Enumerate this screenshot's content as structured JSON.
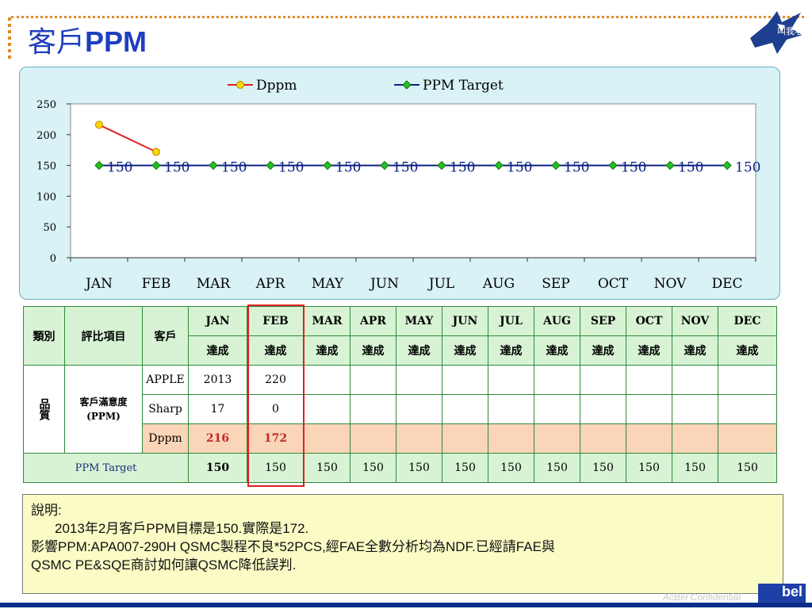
{
  "title": {
    "prefix": "客戶",
    "ppm": "PPM"
  },
  "logo": {
    "text": "叫我老鷹"
  },
  "chart_data": {
    "type": "line",
    "categories": [
      "JAN",
      "FEB",
      "MAR",
      "APR",
      "MAY",
      "JUN",
      "JUL",
      "AUG",
      "SEP",
      "OCT",
      "NOV",
      "DEC"
    ],
    "series": [
      {
        "name": "Dppm",
        "values": [
          216,
          172,
          null,
          null,
          null,
          null,
          null,
          null,
          null,
          null,
          null,
          null
        ],
        "color": "#e02020",
        "marker": "circle",
        "marker_color": "#f5d800"
      },
      {
        "name": "PPM Target",
        "values": [
          150,
          150,
          150,
          150,
          150,
          150,
          150,
          150,
          150,
          150,
          150,
          150
        ],
        "color": "#0b2080",
        "marker": "diamond",
        "marker_color": "#22c022",
        "data_labels": [
          "150",
          "150",
          "150",
          "150",
          "150",
          "150",
          "150",
          "150",
          "150",
          "150",
          "150",
          "150"
        ]
      }
    ],
    "yticks": [
      "0",
      "50",
      "100",
      "150",
      "200",
      "250"
    ],
    "ylim": [
      0,
      250
    ],
    "legend": "top"
  },
  "table": {
    "h_category": "類別",
    "h_item": "評比項目",
    "h_customer": "客戶",
    "months": [
      "JAN",
      "FEB",
      "MAR",
      "APR",
      "MAY",
      "JUN",
      "JUL",
      "AUG",
      "SEP",
      "OCT",
      "NOV",
      "DEC"
    ],
    "status": [
      "達成",
      "達成",
      "達成",
      "達成",
      "達成",
      "達成",
      "達成",
      "達成",
      "達成",
      "達成",
      "達成",
      "達成"
    ],
    "category": "品質",
    "item": "客戶滿意度",
    "item_unit": "(PPM)",
    "rows": [
      {
        "customer": "APPLE",
        "values": [
          "2013",
          "220",
          "",
          "",
          "",
          "",
          "",
          "",
          "",
          "",
          "",
          ""
        ]
      },
      {
        "customer": "Sharp",
        "values": [
          "17",
          "0",
          "",
          "",
          "",
          "",
          "",
          "",
          "",
          "",
          "",
          ""
        ]
      },
      {
        "customer": "Dppm",
        "values": [
          "216",
          "172",
          "",
          "",
          "",
          "",
          "",
          "",
          "",
          "",
          "",
          ""
        ]
      }
    ],
    "target_label": "PPM Target",
    "target_values": [
      "150",
      "150",
      "150",
      "150",
      "150",
      "150",
      "150",
      "150",
      "150",
      "150",
      "150",
      "150"
    ]
  },
  "note": {
    "heading": "說明:",
    "line1": "2013年2月客戶PPM目標是150.實際是172.",
    "line2": "影響PPM:APA007-290H QSMC製程不良*52PCS,經FAE全數分析均為NDF.已經請FAE與",
    "line3": "QSMC PE&SQE商討如何讓QSMC降低誤判."
  },
  "footer": {
    "confidential": "AcBel Confidential",
    "brand": "bel"
  }
}
